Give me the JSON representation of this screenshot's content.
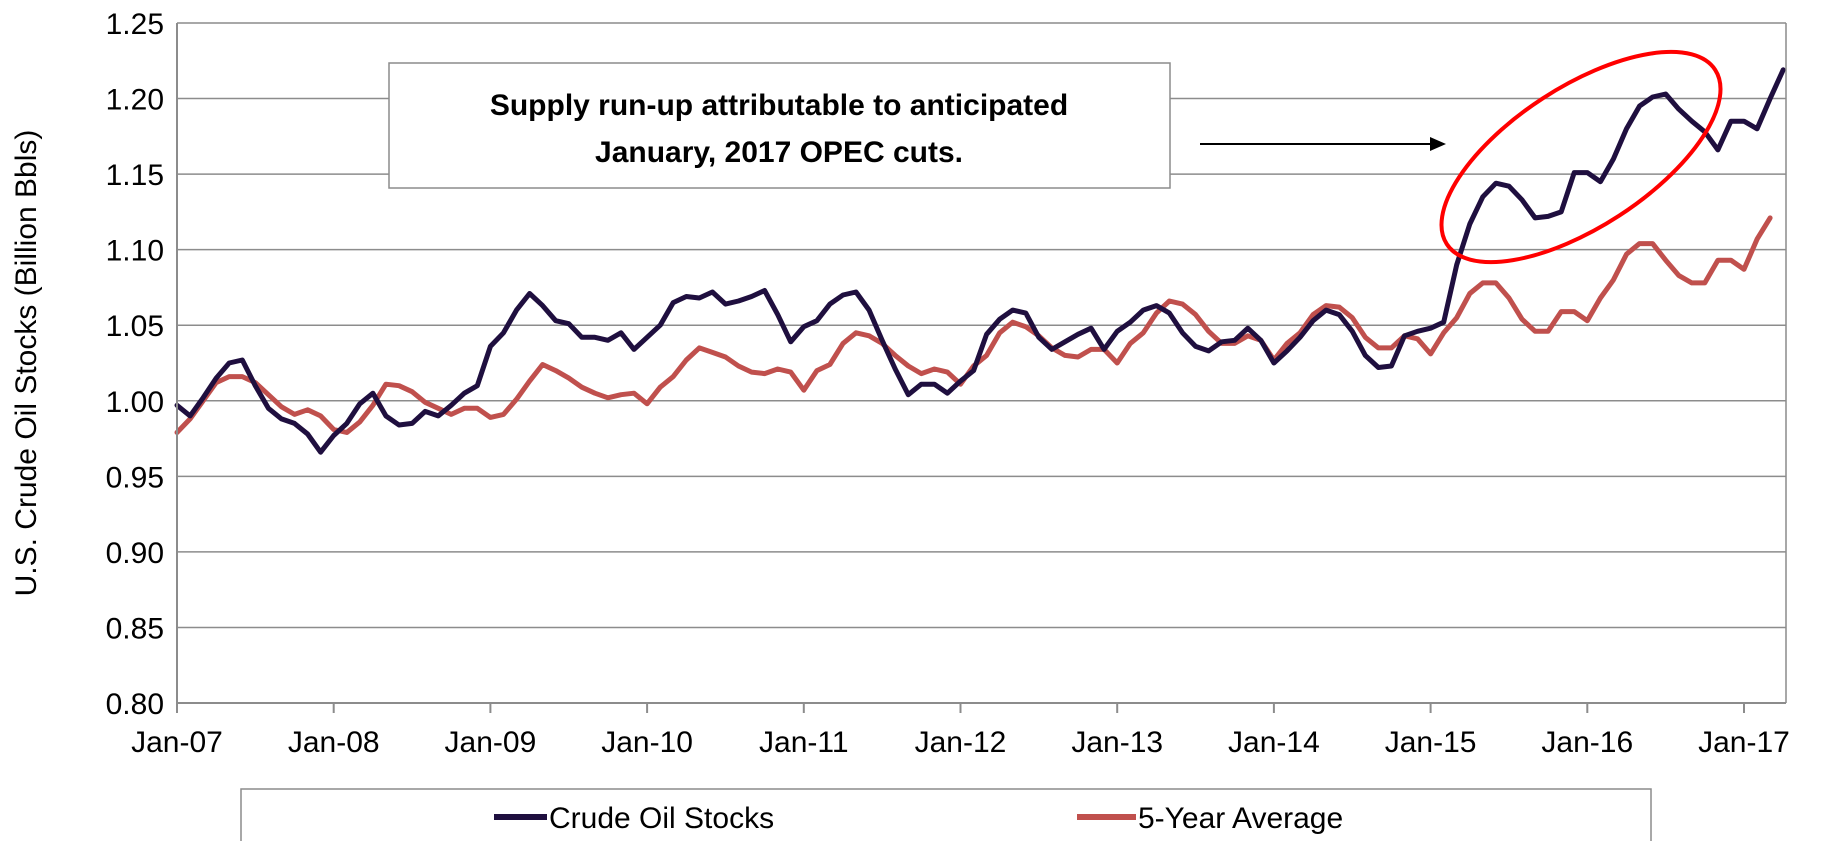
{
  "chart_data": {
    "type": "line",
    "title": "",
    "xlabel": "",
    "ylabel": "U.S. Crude Oil Stocks (Billion Bbls)",
    "ylim": [
      0.8,
      1.25
    ],
    "yticks": [
      "0.80",
      "0.85",
      "0.90",
      "0.95",
      "1.00",
      "1.05",
      "1.10",
      "1.15",
      "1.20",
      "1.25"
    ],
    "xticks": [
      "Jan-07",
      "Jan-08",
      "Jan-09",
      "Jan-10",
      "Jan-11",
      "Jan-12",
      "Jan-13",
      "Jan-14",
      "Jan-15",
      "Jan-16",
      "Jan-17"
    ],
    "x_start": "Jan-07",
    "x_frequency": "monthly",
    "grid": "horizontal",
    "legend_position": "bottom",
    "annotation": {
      "line1": "Supply run-up attributable to anticipated",
      "line2": "January, 2017 OPEC cuts.",
      "highlight": "circled 2015–2016 rise in Crude Oil Stocks"
    },
    "series": [
      {
        "name": "Crude Oil Stocks",
        "color": "#1f0f3f",
        "values": [
          0.997,
          0.99,
          1.002,
          1.015,
          1.025,
          1.027,
          1.01,
          0.995,
          0.988,
          0.985,
          0.978,
          0.966,
          0.977,
          0.985,
          0.998,
          1.005,
          0.99,
          0.984,
          0.985,
          0.993,
          0.99,
          0.997,
          1.005,
          1.01,
          1.036,
          1.045,
          1.06,
          1.071,
          1.063,
          1.053,
          1.051,
          1.042,
          1.042,
          1.04,
          1.045,
          1.034,
          1.042,
          1.05,
          1.065,
          1.069,
          1.068,
          1.072,
          1.064,
          1.066,
          1.069,
          1.073,
          1.057,
          1.039,
          1.049,
          1.053,
          1.064,
          1.07,
          1.072,
          1.06,
          1.04,
          1.021,
          1.004,
          1.011,
          1.011,
          1.005,
          1.013,
          1.02,
          1.044,
          1.054,
          1.06,
          1.058,
          1.042,
          1.034,
          1.039,
          1.044,
          1.048,
          1.034,
          1.046,
          1.052,
          1.06,
          1.063,
          1.058,
          1.045,
          1.036,
          1.033,
          1.039,
          1.04,
          1.048,
          1.04,
          1.025,
          1.033,
          1.042,
          1.053,
          1.06,
          1.057,
          1.046,
          1.03,
          1.022,
          1.023,
          1.043,
          1.046,
          1.048,
          1.052,
          1.09,
          1.117,
          1.135,
          1.144,
          1.142,
          1.133,
          1.121,
          1.122,
          1.125,
          1.151,
          1.151,
          1.145,
          1.16,
          1.18,
          1.195,
          1.201,
          1.203,
          1.193,
          1.185,
          1.178,
          1.166,
          1.185,
          1.185,
          1.18,
          1.2,
          1.219
        ]
      },
      {
        "name": "5-Year Average",
        "color": "#c0504d",
        "values": [
          0.979,
          0.988,
          1.0,
          1.012,
          1.016,
          1.016,
          1.012,
          1.004,
          0.996,
          0.991,
          0.994,
          0.99,
          0.981,
          0.979,
          0.986,
          0.997,
          1.011,
          1.01,
          1.006,
          0.999,
          0.995,
          0.991,
          0.995,
          0.995,
          0.989,
          0.991,
          1.001,
          1.013,
          1.024,
          1.02,
          1.015,
          1.009,
          1.005,
          1.002,
          1.004,
          1.005,
          0.998,
          1.009,
          1.016,
          1.027,
          1.035,
          1.032,
          1.029,
          1.023,
          1.019,
          1.018,
          1.021,
          1.019,
          1.007,
          1.02,
          1.024,
          1.038,
          1.045,
          1.043,
          1.038,
          1.03,
          1.023,
          1.018,
          1.021,
          1.019,
          1.011,
          1.023,
          1.03,
          1.045,
          1.052,
          1.049,
          1.043,
          1.035,
          1.03,
          1.029,
          1.034,
          1.034,
          1.025,
          1.038,
          1.045,
          1.058,
          1.066,
          1.064,
          1.057,
          1.046,
          1.038,
          1.038,
          1.043,
          1.04,
          1.027,
          1.038,
          1.045,
          1.057,
          1.063,
          1.062,
          1.055,
          1.042,
          1.035,
          1.035,
          1.043,
          1.041,
          1.031,
          1.045,
          1.055,
          1.071,
          1.078,
          1.078,
          1.068,
          1.054,
          1.046,
          1.046,
          1.059,
          1.059,
          1.053,
          1.068,
          1.08,
          1.097,
          1.104,
          1.104,
          1.093,
          1.083,
          1.078,
          1.078,
          1.093,
          1.093,
          1.087,
          1.107,
          1.121
        ]
      }
    ]
  }
}
